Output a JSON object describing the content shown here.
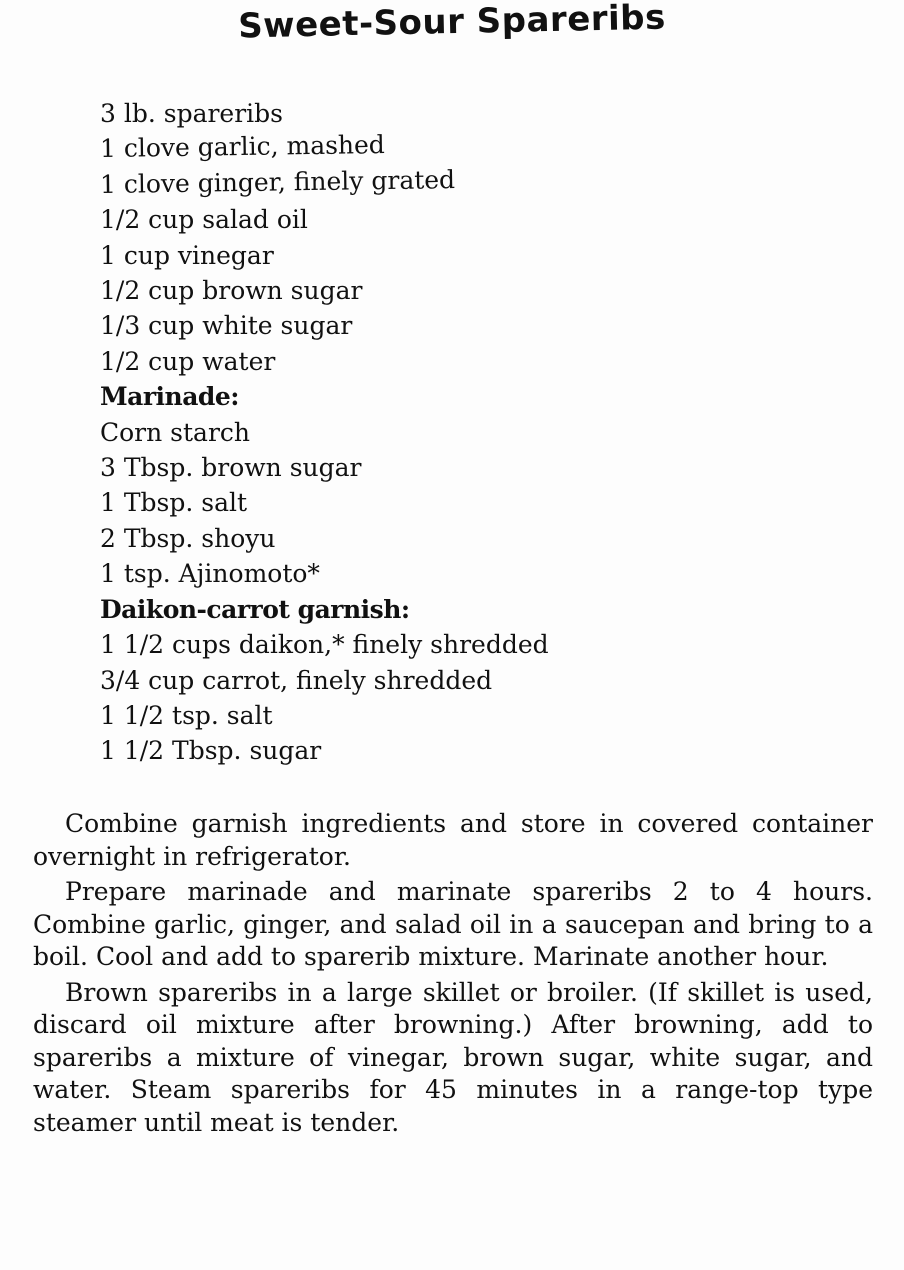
{
  "title": "Sweet-Sour Spareribs",
  "ingredients": [
    {
      "text": "3 lb. spareribs",
      "heading": false
    },
    {
      "text": "1 clove garlic, mashed",
      "heading": false
    },
    {
      "text": "1 clove ginger, finely grated",
      "heading": false
    },
    {
      "text": "1/2 cup salad oil",
      "heading": false
    },
    {
      "text": "1 cup vinegar",
      "heading": false
    },
    {
      "text": "1/2 cup brown sugar",
      "heading": false
    },
    {
      "text": "1/3 cup white sugar",
      "heading": false
    },
    {
      "text": "1/2 cup water",
      "heading": false
    },
    {
      "text": "Marinade:",
      "heading": true
    },
    {
      "text": "Corn starch",
      "heading": false
    },
    {
      "text": "3 Tbsp. brown sugar",
      "heading": false
    },
    {
      "text": "1 Tbsp. salt",
      "heading": false
    },
    {
      "text": "2 Tbsp. shoyu",
      "heading": false
    },
    {
      "text": "1 tsp. Ajinomoto*",
      "heading": false
    },
    {
      "text": "Daikon-carrot garnish:",
      "heading": true
    },
    {
      "text": "1 1/2 cups daikon,* finely shredded",
      "heading": false
    },
    {
      "text": "3/4 cup carrot, finely shredded",
      "heading": false
    },
    {
      "text": "1 1/2 tsp. salt",
      "heading": false
    },
    {
      "text": "1 1/2 Tbsp. sugar",
      "heading": false
    }
  ],
  "method": [
    "Combine garnish ingredients and store in covered container overnight in refrigerator.",
    "Prepare marinade and marinate spareribs 2 to 4 hours. Combine garlic, ginger, and salad oil in a saucepan and bring to a boil. Cool and add to sparerib mixture. Marinate another hour.",
    "Brown spareribs in a large skillet or broiler. (If skillet is used, discard oil mixture after browning.) After browning, add to spareribs a mixture of vinegar, brown sugar, white sugar, and water. Steam spareribs for 45 minutes in a range-top type steamer until meat is tender."
  ]
}
